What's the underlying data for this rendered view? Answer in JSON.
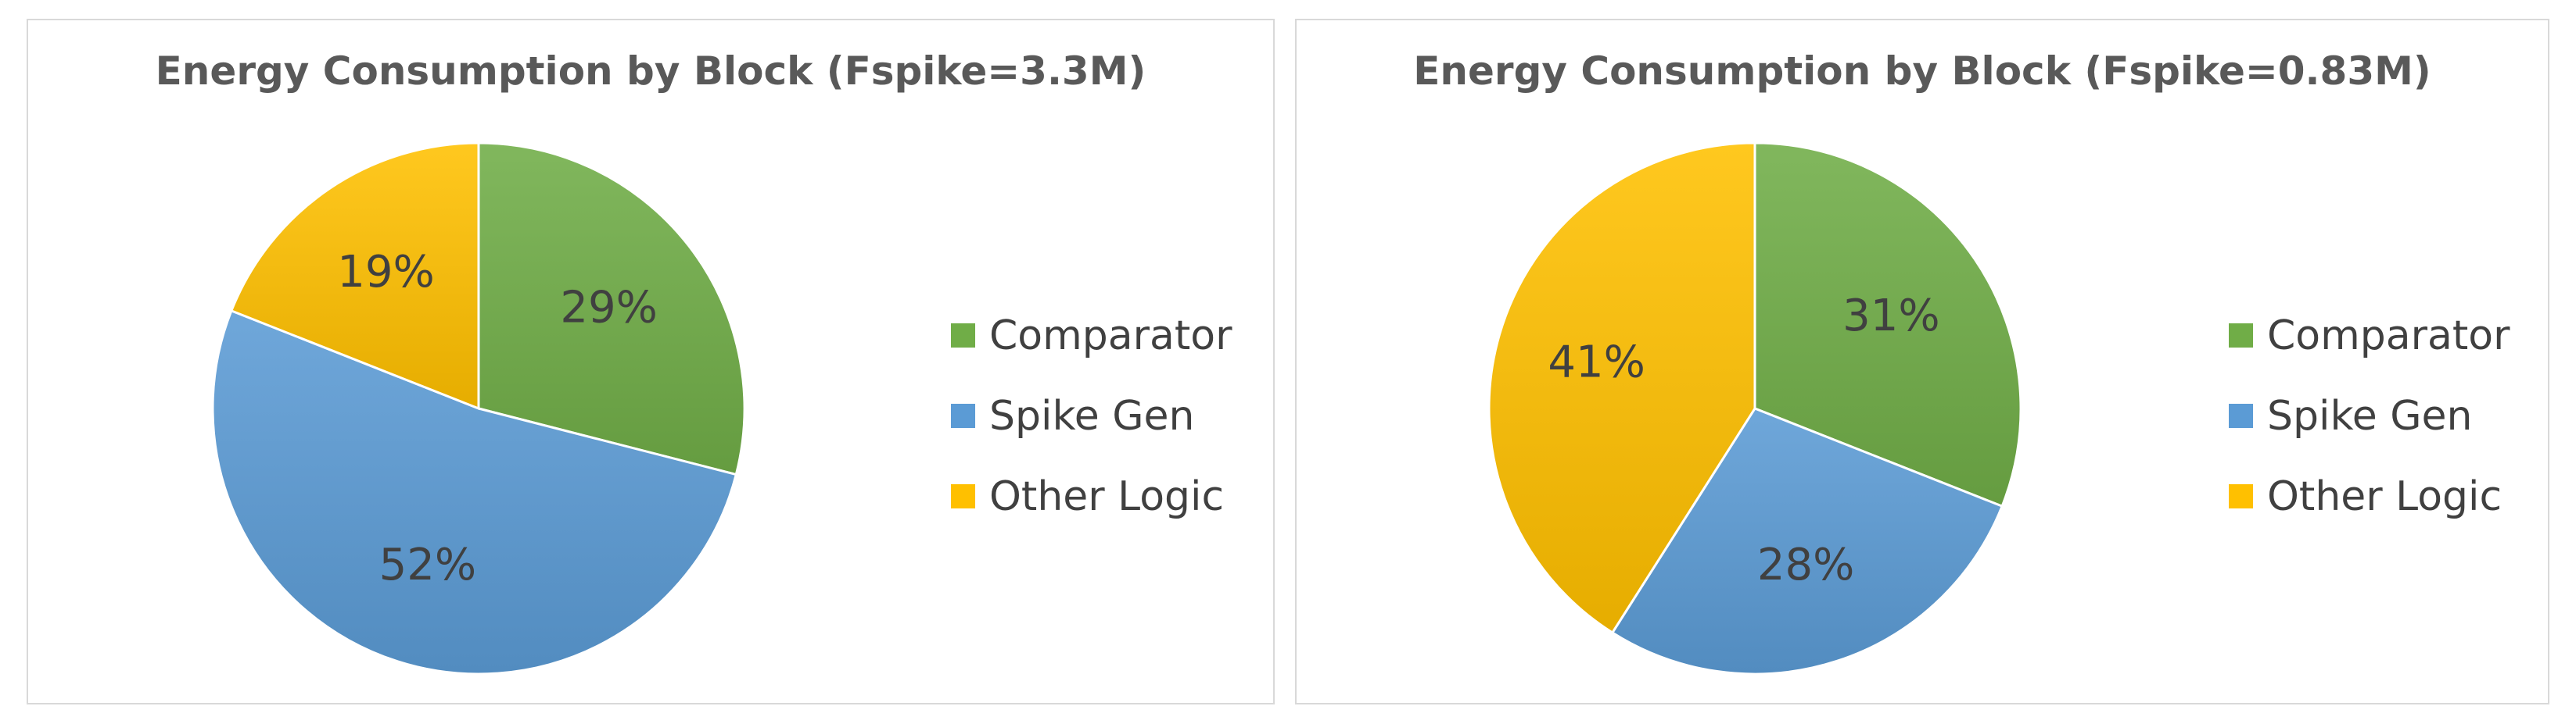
{
  "chart_data": [
    {
      "type": "pie",
      "title": "Energy Consumption by Block (Fspike=3.3M)",
      "categories": [
        "Comparator",
        "Spike Gen",
        "Other Logic"
      ],
      "values": [
        29,
        52,
        19
      ],
      "labels": [
        "29%",
        "52%",
        "19%"
      ],
      "colors": [
        "#70ad47",
        "#5b9bd5",
        "#ffc000"
      ],
      "legend": "right"
    },
    {
      "type": "pie",
      "title": "Energy Consumption by Block (Fspike=0.83M)",
      "categories": [
        "Comparator",
        "Spike Gen",
        "Other Logic"
      ],
      "values": [
        31,
        28,
        41
      ],
      "labels": [
        "31%",
        "28%",
        "41%"
      ],
      "colors": [
        "#70ad47",
        "#5b9bd5",
        "#ffc000"
      ],
      "legend": "right"
    }
  ]
}
